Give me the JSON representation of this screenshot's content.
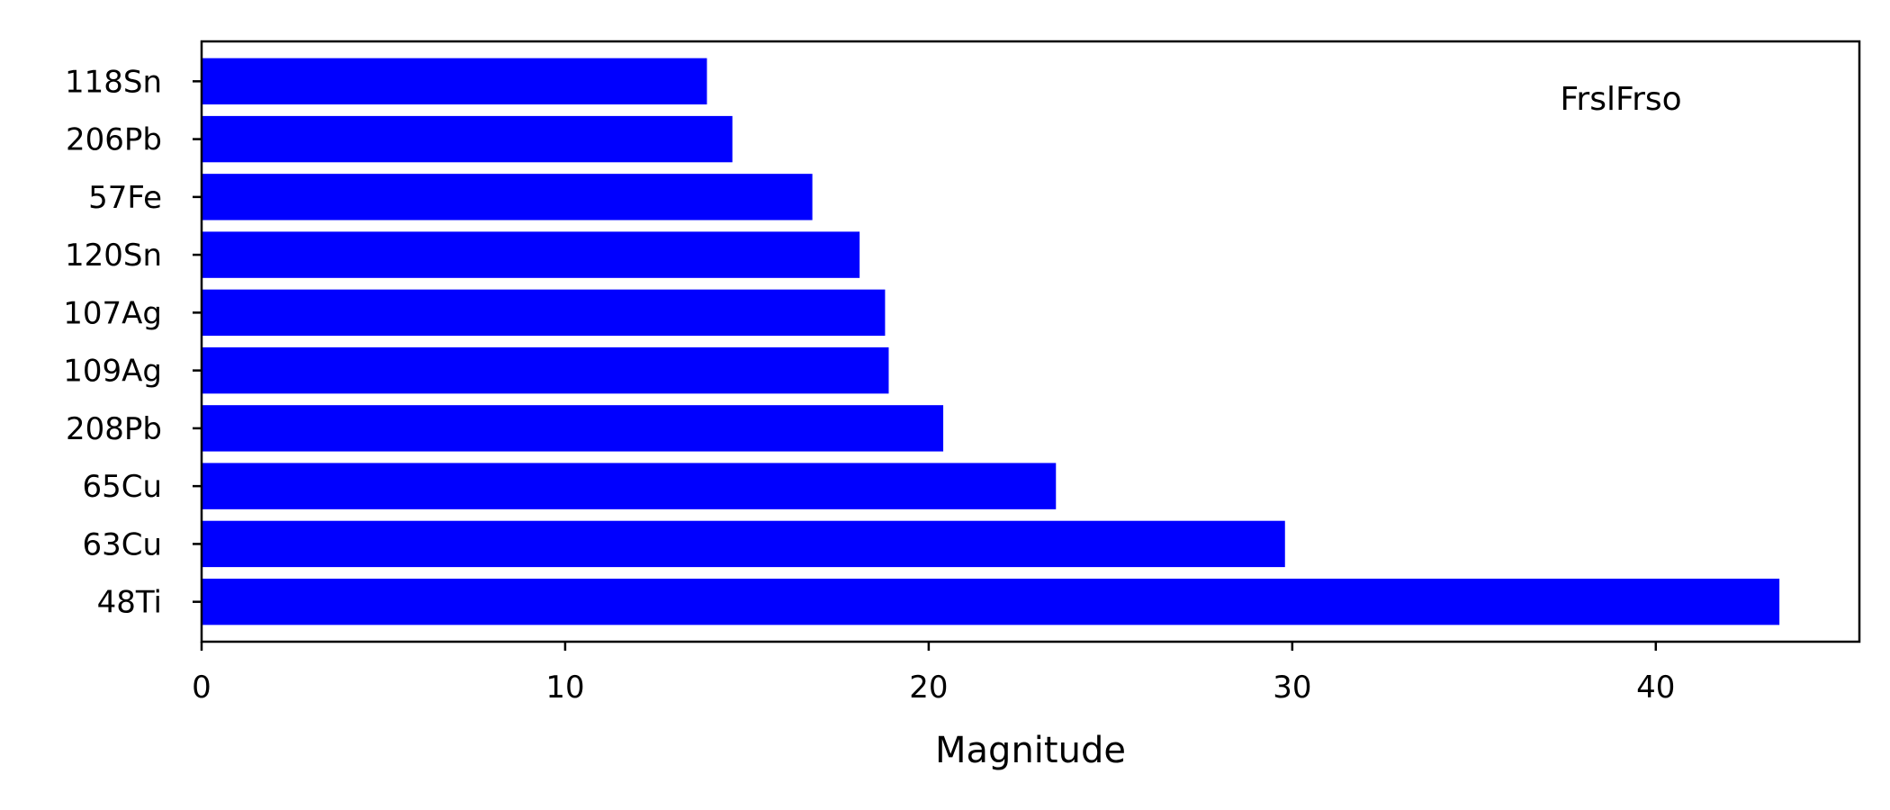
{
  "chart_data": {
    "type": "bar",
    "orientation": "horizontal",
    "categories": [
      "118Sn",
      "206Pb",
      "57Fe",
      "120Sn",
      "107Ag",
      "109Ag",
      "208Pb",
      "65Cu",
      "63Cu",
      "48Ti"
    ],
    "values": [
      13.9,
      14.6,
      16.8,
      18.1,
      18.8,
      18.9,
      20.4,
      23.5,
      29.8,
      43.4
    ],
    "xlabel": "Magnitude",
    "ylabel": "",
    "title": "",
    "xlim": [
      0,
      45.6
    ],
    "xticks": [
      0,
      10,
      20,
      30,
      40
    ],
    "annotation": "FrslFrso",
    "bar_color": "#0000ff",
    "grid": false,
    "legend": "none"
  }
}
